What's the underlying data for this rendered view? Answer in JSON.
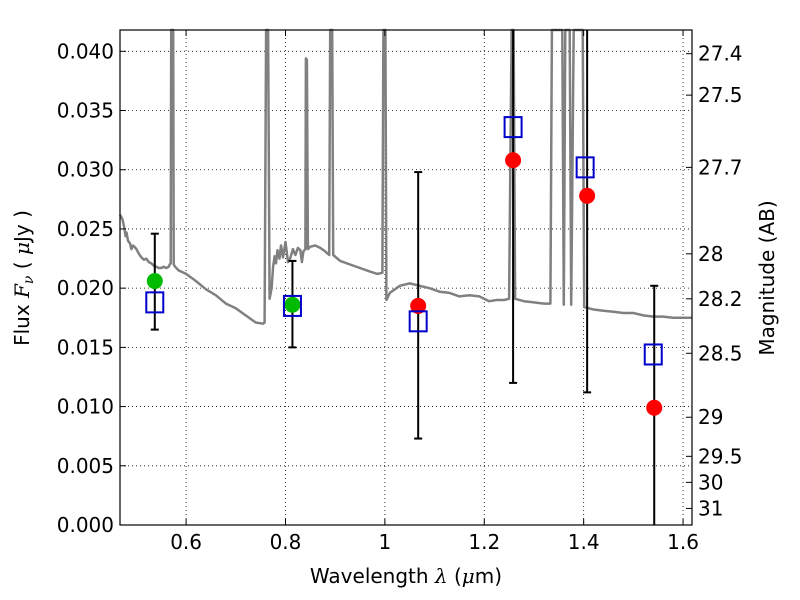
{
  "chart_data": {
    "type": "scatter",
    "xlabel": {
      "pre": "Wavelength  ",
      "sym": "λ",
      "post": " (",
      "unit_sym": "μ",
      "unit": "m)"
    },
    "ylabel": {
      "pre": "Flux  ",
      "sym": "F",
      "sub": "ν",
      "post": "  ( ",
      "unit_sym": "μ",
      "unit": "Jy )"
    },
    "y2label": "Magnitude (AB)",
    "xlim": [
      0.467,
      1.618
    ],
    "ylim": [
      0.0,
      0.0418
    ],
    "grid": true,
    "grid_style": "dotted",
    "xticks": [
      0.6,
      0.8,
      1.0,
      1.2,
      1.4,
      1.6
    ],
    "xtick_labels": [
      "0.6",
      "0.8",
      "1",
      "1.2",
      "1.4",
      "1.6"
    ],
    "yticks": [
      0.0,
      0.005,
      0.01,
      0.015,
      0.02,
      0.025,
      0.03,
      0.035,
      0.04
    ],
    "ytick_labels": [
      "0.000",
      "0.005",
      "0.010",
      "0.015",
      "0.020",
      "0.025",
      "0.030",
      "0.035",
      "0.040"
    ],
    "y2ticks": [
      {
        "label": "27.4",
        "flux": 0.0398
      },
      {
        "label": "27.5",
        "flux": 0.0363
      },
      {
        "label": "27.7",
        "flux": 0.0302
      },
      {
        "label": "28",
        "flux": 0.0229
      },
      {
        "label": "28.2",
        "flux": 0.0191
      },
      {
        "label": "28.5",
        "flux": 0.0145
      },
      {
        "label": "29",
        "flux": 0.0091
      },
      {
        "label": "29.5",
        "flux": 0.0058
      },
      {
        "label": "30",
        "flux": 0.0036
      },
      {
        "label": "31",
        "flux": 0.0014
      }
    ],
    "series": [
      {
        "marker": "circle",
        "color": "#00bb00",
        "x": [
          0.537,
          0.814
        ],
        "y": [
          0.0206,
          0.0186
        ]
      },
      {
        "marker": "circle",
        "color": "#ff0000",
        "x": [
          1.067,
          1.258,
          1.407,
          1.542
        ],
        "y": [
          0.0185,
          0.0308,
          0.0278,
          0.0099
        ]
      },
      {
        "marker": "open-square",
        "color": "#0000cc",
        "x": [
          0.537,
          0.814,
          1.067,
          1.258,
          1.403,
          1.54
        ],
        "y": [
          0.0188,
          0.0185,
          0.0172,
          0.0336,
          0.0302,
          0.0144
        ]
      }
    ],
    "errorbars": [
      {
        "x": 0.537,
        "low": 0.0165,
        "high": 0.0246
      },
      {
        "x": 0.814,
        "low": 0.015,
        "high": 0.0223
      },
      {
        "x": 1.067,
        "low": 0.0073,
        "high": 0.0298
      },
      {
        "x": 1.258,
        "low": 0.012,
        "high": 0.0418
      },
      {
        "x": 1.407,
        "low": 0.0112,
        "high": 0.0418
      },
      {
        "x": 1.542,
        "low": 0.0,
        "high": 0.0202
      }
    ],
    "template_spectrum": {
      "color": "#808080",
      "points": [
        [
          0.467,
          0.0262
        ],
        [
          0.472,
          0.0258
        ],
        [
          0.476,
          0.025
        ],
        [
          0.478,
          0.0244
        ],
        [
          0.48,
          0.0247
        ],
        [
          0.483,
          0.024
        ],
        [
          0.487,
          0.0238
        ],
        [
          0.49,
          0.0233
        ],
        [
          0.493,
          0.0236
        ],
        [
          0.496,
          0.0235
        ],
        [
          0.5,
          0.0233
        ],
        [
          0.505,
          0.0229
        ],
        [
          0.51,
          0.0226
        ],
        [
          0.515,
          0.0224
        ],
        [
          0.52,
          0.0225
        ],
        [
          0.525,
          0.0222
        ],
        [
          0.53,
          0.0221
        ],
        [
          0.535,
          0.0219
        ],
        [
          0.54,
          0.0218
        ],
        [
          0.545,
          0.0217
        ],
        [
          0.55,
          0.0217
        ],
        [
          0.555,
          0.0218
        ],
        [
          0.56,
          0.0217
        ],
        [
          0.565,
          0.0218
        ],
        [
          0.567,
          0.022
        ],
        [
          0.569,
          0.0221
        ],
        [
          0.57,
          0.0418
        ],
        [
          0.574,
          0.0418
        ],
        [
          0.575,
          0.022
        ],
        [
          0.578,
          0.0218
        ],
        [
          0.585,
          0.0215
        ],
        [
          0.6,
          0.0212
        ],
        [
          0.62,
          0.0206
        ],
        [
          0.64,
          0.0199
        ],
        [
          0.66,
          0.0194
        ],
        [
          0.68,
          0.0187
        ],
        [
          0.7,
          0.0183
        ],
        [
          0.72,
          0.0177
        ],
        [
          0.74,
          0.0171
        ],
        [
          0.755,
          0.017
        ],
        [
          0.758,
          0.0171
        ],
        [
          0.761,
          0.0418
        ],
        [
          0.765,
          0.0418
        ],
        [
          0.768,
          0.0191
        ],
        [
          0.772,
          0.02
        ],
        [
          0.775,
          0.0218
        ],
        [
          0.778,
          0.0227
        ],
        [
          0.781,
          0.0221
        ],
        [
          0.784,
          0.0232
        ],
        [
          0.788,
          0.0225
        ],
        [
          0.791,
          0.0236
        ],
        [
          0.795,
          0.0226
        ],
        [
          0.8,
          0.0239
        ],
        [
          0.805,
          0.0222
        ],
        [
          0.81,
          0.0226
        ],
        [
          0.815,
          0.0233
        ],
        [
          0.82,
          0.0228
        ],
        [
          0.825,
          0.0234
        ],
        [
          0.83,
          0.0232
        ],
        [
          0.833,
          0.0222
        ],
        [
          0.836,
          0.0231
        ],
        [
          0.84,
          0.0233
        ],
        [
          0.841,
          0.0394
        ],
        [
          0.843,
          0.0393
        ],
        [
          0.845,
          0.0233
        ],
        [
          0.85,
          0.0235
        ],
        [
          0.86,
          0.0236
        ],
        [
          0.87,
          0.0234
        ],
        [
          0.88,
          0.0231
        ],
        [
          0.888,
          0.0228
        ],
        [
          0.89,
          0.0418
        ],
        [
          0.894,
          0.0418
        ],
        [
          0.896,
          0.0228
        ],
        [
          0.91,
          0.0223
        ],
        [
          0.93,
          0.022
        ],
        [
          0.95,
          0.0217
        ],
        [
          0.97,
          0.0214
        ],
        [
          0.985,
          0.0212
        ],
        [
          0.995,
          0.0213
        ],
        [
          0.997,
          0.0418
        ],
        [
          1.001,
          0.0418
        ],
        [
          1.003,
          0.019
        ],
        [
          1.01,
          0.0196
        ],
        [
          1.03,
          0.0202
        ],
        [
          1.05,
          0.0204
        ],
        [
          1.07,
          0.0202
        ],
        [
          1.09,
          0.02
        ],
        [
          1.11,
          0.0197
        ],
        [
          1.13,
          0.0196
        ],
        [
          1.15,
          0.0193
        ],
        [
          1.17,
          0.0194
        ],
        [
          1.19,
          0.0193
        ],
        [
          1.21,
          0.0189
        ],
        [
          1.225,
          0.019
        ],
        [
          1.24,
          0.019
        ],
        [
          1.25,
          0.0191
        ],
        [
          1.255,
          0.0418
        ],
        [
          1.259,
          0.0418
        ],
        [
          1.262,
          0.0191
        ],
        [
          1.28,
          0.0189
        ],
        [
          1.3,
          0.0188
        ],
        [
          1.32,
          0.0187
        ],
        [
          1.333,
          0.0187
        ],
        [
          1.336,
          0.0418
        ],
        [
          1.357,
          0.0418
        ],
        [
          1.36,
          0.0186
        ],
        [
          1.363,
          0.0418
        ],
        [
          1.372,
          0.0418
        ],
        [
          1.375,
          0.0186
        ],
        [
          1.38,
          0.0418
        ],
        [
          1.398,
          0.0418
        ],
        [
          1.401,
          0.0184
        ],
        [
          1.42,
          0.0182
        ],
        [
          1.44,
          0.0181
        ],
        [
          1.46,
          0.018
        ],
        [
          1.48,
          0.0179
        ],
        [
          1.5,
          0.0179
        ],
        [
          1.52,
          0.0177
        ],
        [
          1.54,
          0.0176
        ],
        [
          1.56,
          0.0176
        ],
        [
          1.58,
          0.0175
        ],
        [
          1.6,
          0.0175
        ],
        [
          1.618,
          0.0175
        ]
      ]
    }
  }
}
